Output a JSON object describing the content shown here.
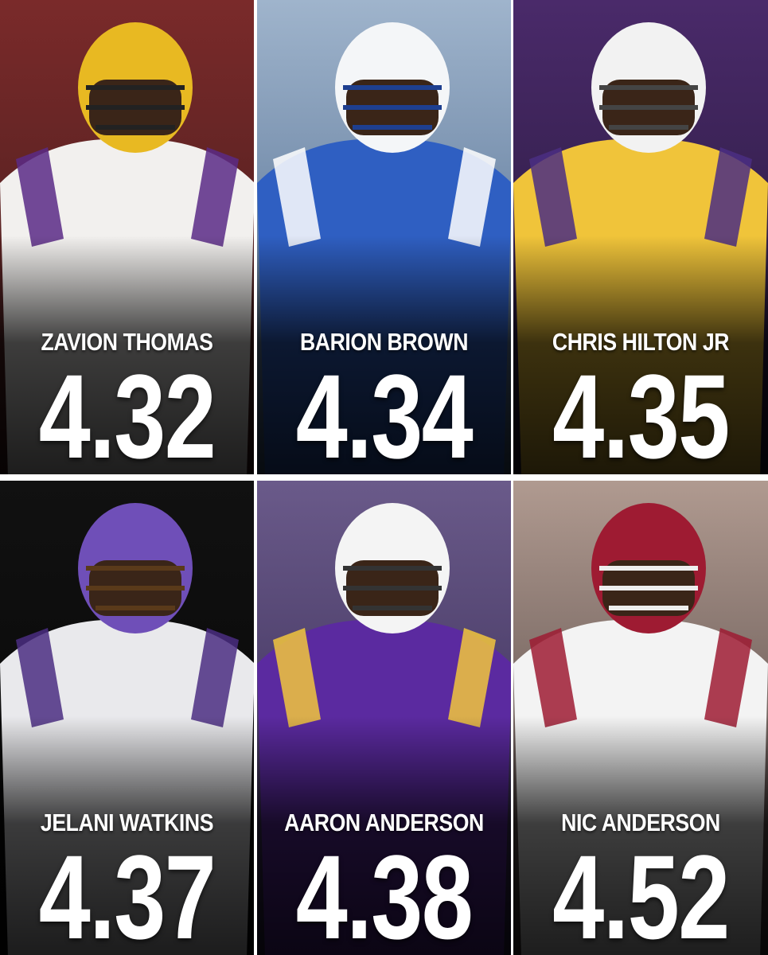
{
  "players": [
    {
      "name": "ZAVION THOMAS",
      "time": "4.32"
    },
    {
      "name": "BARION BROWN",
      "time": "4.34"
    },
    {
      "name": "CHRIS HILTON JR",
      "time": "4.35"
    },
    {
      "name": "JELANI WATKINS",
      "time": "4.37"
    },
    {
      "name": "AARON ANDERSON",
      "time": "4.38"
    },
    {
      "name": "NIC ANDERSON",
      "time": "4.52"
    }
  ]
}
